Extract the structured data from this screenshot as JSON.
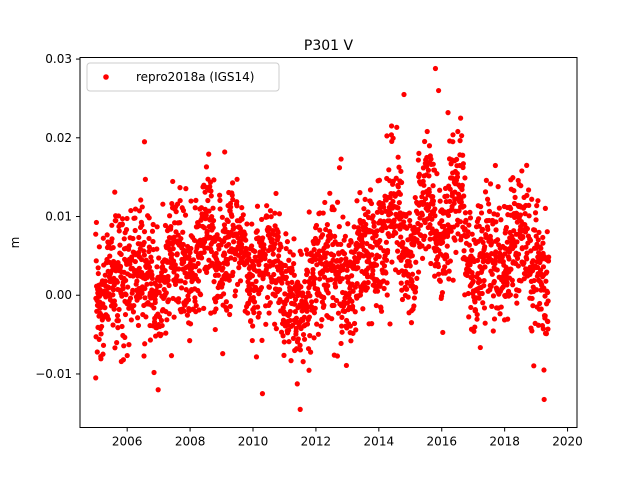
{
  "chart_data": {
    "type": "scatter",
    "title": "P301 V",
    "xlabel": "",
    "ylabel": "m",
    "xlim": [
      2004.5,
      2020.3
    ],
    "ylim": [
      -0.0168,
      0.0302
    ],
    "x_ticks": [
      2006,
      2008,
      2010,
      2012,
      2014,
      2016,
      2018,
      2020
    ],
    "x_tick_labels": [
      "2006",
      "2008",
      "2010",
      "2012",
      "2014",
      "2016",
      "2018",
      "2020"
    ],
    "y_ticks": [
      -0.01,
      0.0,
      0.01,
      0.02,
      0.03
    ],
    "y_tick_labels": [
      "−0.01",
      "0.00",
      "0.01",
      "0.02",
      "0.03"
    ],
    "grid": false,
    "legend_position": "top-left",
    "series": [
      {
        "name": "repro2018a (IGS14)",
        "color": "#ff0000",
        "marker": "circle",
        "trend_knots": {
          "x": [
            2005.0,
            2005.5,
            2006.0,
            2006.5,
            2007.0,
            2007.5,
            2008.0,
            2008.5,
            2009.0,
            2009.5,
            2010.0,
            2010.5,
            2011.0,
            2011.5,
            2012.0,
            2012.5,
            2013.0,
            2013.5,
            2014.0,
            2014.5,
            2015.0,
            2015.5,
            2016.0,
            2016.5,
            2017.0,
            2017.5,
            2018.0,
            2018.5,
            2019.0,
            2019.4
          ],
          "y": [
            -0.001,
            0.003,
            0.001,
            0.004,
            0.0,
            0.006,
            0.002,
            0.009,
            0.003,
            0.008,
            0.002,
            0.006,
            0.001,
            -0.003,
            0.002,
            0.005,
            0.001,
            0.006,
            0.005,
            0.011,
            0.004,
            0.013,
            0.006,
            0.014,
            0.002,
            0.006,
            0.004,
            0.008,
            0.003,
            0.001
          ]
        },
        "scatter_std": 0.004,
        "spacing_years": 0.0055,
        "outliers": [
          {
            "x": 2006.55,
            "y": 0.0195
          },
          {
            "x": 2009.1,
            "y": 0.0182
          },
          {
            "x": 2010.3,
            "y": -0.0125
          },
          {
            "x": 2011.5,
            "y": -0.0145
          },
          {
            "x": 2014.8,
            "y": 0.0255
          },
          {
            "x": 2015.8,
            "y": 0.0288
          },
          {
            "x": 2015.9,
            "y": 0.026
          },
          {
            "x": 2016.2,
            "y": 0.0232
          },
          {
            "x": 2016.6,
            "y": 0.0225
          },
          {
            "x": 2005.0,
            "y": -0.0105
          },
          {
            "x": 2019.25,
            "y": -0.0095
          },
          {
            "x": 2012.8,
            "y": 0.0173
          },
          {
            "x": 2018.7,
            "y": 0.0165
          }
        ]
      }
    ]
  }
}
